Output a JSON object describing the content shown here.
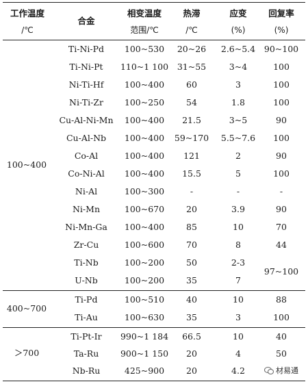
{
  "header": {
    "col1_line1": "工作温度",
    "col1_line2": "/℃",
    "col2": "合金",
    "col3_line1": "相变温度",
    "col3_line2": "范围/℃",
    "col4_line1": "热滞",
    "col4_line2": "/℃",
    "col5_line1": "应变",
    "col5_line2": "(%)",
    "col6_line1": "回复率",
    "col6_line2": "(%)"
  },
  "groups": [
    {
      "label": "100~400",
      "rows": [
        {
          "alloy": "Ti-Ni-Pd",
          "range": "100~530",
          "hysteresis": "20~26",
          "strain": "2.6~5.4",
          "recovery": "90~100"
        },
        {
          "alloy": "Ti-Ni-Pt",
          "range": "110~1 100",
          "hysteresis": "31~55",
          "strain": "3~4",
          "recovery": "100"
        },
        {
          "alloy": "Ni-Ti-Hf",
          "range": "100~400",
          "hysteresis": "60",
          "strain": "3",
          "recovery": "100"
        },
        {
          "alloy": "Ni-Ti-Zr",
          "range": "100~250",
          "hysteresis": "54",
          "strain": "1.8",
          "recovery": "100"
        },
        {
          "alloy": "Cu-Al-Ni-Mn",
          "range": "100~400",
          "hysteresis": "21.5",
          "strain": "3~5",
          "recovery": "90"
        },
        {
          "alloy": "Cu-Al-Nb",
          "range": "100~400",
          "hysteresis": "59~170",
          "strain": "5.5~7.6",
          "recovery": "100"
        },
        {
          "alloy": "Co-Al",
          "range": "100~400",
          "hysteresis": "121",
          "strain": "2",
          "recovery": "90"
        },
        {
          "alloy": "Co-Ni-Al",
          "range": "100~400",
          "hysteresis": "15.5",
          "strain": "5",
          "recovery": "100"
        },
        {
          "alloy": "Ni-Al",
          "range": "100~300",
          "hysteresis": "-",
          "strain": "-",
          "recovery": "-"
        },
        {
          "alloy": "Ni-Mn",
          "range": "100~670",
          "hysteresis": "20",
          "strain": "3.9",
          "recovery": "90"
        },
        {
          "alloy": "Ni-Mn-Ga",
          "range": "100~400",
          "hysteresis": "85",
          "strain": "10",
          "recovery": "70"
        },
        {
          "alloy": "Zr-Cu",
          "range": "100~600",
          "hysteresis": "70",
          "strain": "8",
          "recovery": "44"
        },
        {
          "alloy": "Ti-Nb",
          "range": "100~200",
          "hysteresis": "50",
          "strain": "2-3",
          "recovery": ""
        },
        {
          "alloy": "U-Nb",
          "range": "100~200",
          "hysteresis": "35",
          "strain": "7",
          "recovery": ""
        }
      ],
      "merged_recovery": "97~100"
    },
    {
      "label": "400~700",
      "rows": [
        {
          "alloy": "Ti-Pd",
          "range": "100~510",
          "hysteresis": "40",
          "strain": "10",
          "recovery": "88"
        },
        {
          "alloy": "Ti-Au",
          "range": "100~630",
          "hysteresis": "35",
          "strain": "3",
          "recovery": "100"
        }
      ]
    },
    {
      "label": "＞700",
      "rows": [
        {
          "alloy": "Ti-Pt-Ir",
          "range": "990~1 184",
          "hysteresis": "66.5",
          "strain": "10",
          "recovery": "40"
        },
        {
          "alloy": "Ta-Ru",
          "range": "900~1 150",
          "hysteresis": "20",
          "strain": "4",
          "recovery": "50"
        },
        {
          "alloy": "Nb-Ru",
          "range": "425~900",
          "hysteresis": "20",
          "strain": "4.2",
          "recovery": ""
        }
      ]
    }
  ],
  "watermark": {
    "text": "材易通",
    "icon": "wechat-icon"
  }
}
